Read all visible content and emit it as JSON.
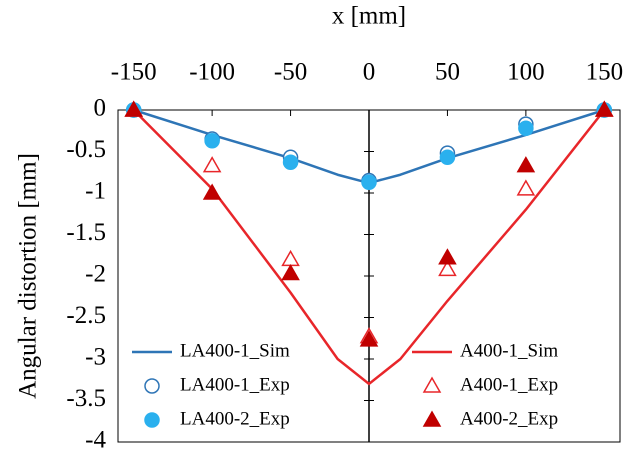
{
  "chart_data": {
    "type": "line",
    "xlabel": "x [mm]",
    "ylabel": "Angular distortion [mm]",
    "xlim": [
      -160,
      160
    ],
    "xticks": [
      -150,
      -100,
      -50,
      0,
      50,
      100,
      150
    ],
    "ylim": [
      -4,
      0
    ],
    "yticks": [
      0,
      -0.5,
      -1,
      -1.5,
      -2,
      -2.5,
      -3,
      -3.5,
      -4
    ],
    "series": [
      {
        "name": "LA400-1_Sim",
        "color": "#2e75b6",
        "marker": "line",
        "x": [
          -150,
          -100,
          -50,
          -20,
          0,
          20,
          50,
          100,
          150
        ],
        "values": [
          0,
          -0.3,
          -0.58,
          -0.78,
          -0.88,
          -0.78,
          -0.58,
          -0.3,
          0
        ]
      },
      {
        "name": "LA400-1_Exp",
        "color": "#2e75b6",
        "marker": "circle-open",
        "x": [
          -150,
          -100,
          -50,
          0,
          50,
          100,
          150
        ],
        "values": [
          0,
          -0.35,
          -0.57,
          -0.85,
          -0.52,
          -0.17,
          0
        ]
      },
      {
        "name": "LA400-2_Exp",
        "color": "#2ab0ee",
        "marker": "circle",
        "x": [
          -150,
          -100,
          -50,
          0,
          50,
          100,
          150
        ],
        "values": [
          0,
          -0.37,
          -0.63,
          -0.87,
          -0.57,
          -0.22,
          0
        ]
      },
      {
        "name": "A400-1_Sim",
        "color": "#e8262a",
        "marker": "line",
        "x": [
          -150,
          -100,
          -50,
          -20,
          0,
          20,
          50,
          100,
          150
        ],
        "values": [
          0,
          -0.95,
          -2.2,
          -3.0,
          -3.3,
          -3.0,
          -2.3,
          -1.2,
          0
        ]
      },
      {
        "name": "A400-1_Exp",
        "color": "#e8262a",
        "marker": "triangle-open",
        "x": [
          -150,
          -100,
          -50,
          0,
          50,
          100,
          150
        ],
        "values": [
          0,
          -0.67,
          -1.8,
          -2.73,
          -1.92,
          -0.95,
          0
        ]
      },
      {
        "name": "A400-2_Exp",
        "color": "#c00000",
        "marker": "triangle",
        "x": [
          -150,
          -100,
          -50,
          0,
          50,
          100,
          150
        ],
        "values": [
          0,
          -1.0,
          -1.97,
          -2.77,
          -1.78,
          -0.67,
          0
        ]
      }
    ]
  }
}
